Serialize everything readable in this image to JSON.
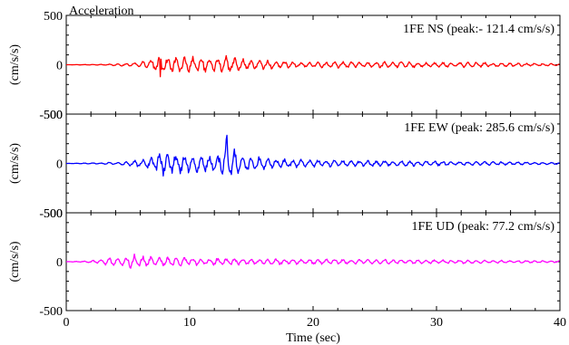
{
  "chart_data": [
    {
      "type": "line",
      "title": "Acceleration",
      "ylabel": "(cm/s/s)",
      "xlabel": "",
      "xlim": [
        0,
        40
      ],
      "ylim": [
        -500,
        500
      ],
      "yticks": [
        -500,
        0,
        500
      ],
      "xticks": [
        0,
        10,
        20,
        30,
        40
      ],
      "grid": false,
      "series": [
        {
          "name": "1FE NS (peak:- 121.4 cm/s/s)",
          "color": "#ff0000",
          "peak": -121.4,
          "peak_time": 7.6,
          "x": [
            0,
            3,
            4,
            5,
            6,
            7,
            7.6,
            8,
            9,
            10,
            11,
            12,
            13,
            14,
            15,
            16,
            17,
            18,
            20,
            22,
            24,
            26,
            28,
            30,
            32,
            34,
            36,
            38,
            40
          ],
          "y": [
            0,
            5,
            12,
            20,
            30,
            60,
            -121.4,
            90,
            -95,
            85,
            -100,
            80,
            -95,
            70,
            -60,
            55,
            -40,
            35,
            -25,
            45,
            -30,
            35,
            -30,
            25,
            30,
            -25,
            20,
            -15,
            10
          ]
        }
      ]
    },
    {
      "type": "line",
      "title": "",
      "ylabel": "(cm/s/s)",
      "xlabel": "",
      "xlim": [
        0,
        40
      ],
      "ylim": [
        -500,
        500
      ],
      "yticks": [
        -500,
        0,
        500
      ],
      "xticks": [
        0,
        10,
        20,
        30,
        40
      ],
      "grid": false,
      "series": [
        {
          "name": "1FE EW (peak: 285.6 cm/s/s)",
          "color": "#0000ff",
          "peak": 285.6,
          "peak_time": 13.0,
          "x": [
            0,
            3,
            4,
            5,
            6,
            7,
            7.8,
            8.5,
            9,
            10,
            11,
            12,
            12.5,
            13,
            13.4,
            14,
            15,
            16,
            17,
            18,
            20,
            22,
            24,
            26,
            28,
            30,
            32,
            34,
            36,
            38,
            40
          ],
          "y": [
            0,
            8,
            15,
            25,
            45,
            70,
            150,
            -110,
            120,
            -100,
            90,
            -85,
            100,
            285.6,
            -200,
            90,
            -80,
            70,
            -55,
            50,
            -40,
            40,
            -35,
            30,
            -30,
            25,
            20,
            -20,
            18,
            -12,
            10
          ]
        }
      ]
    },
    {
      "type": "line",
      "title": "",
      "ylabel": "(cm/s/s)",
      "xlabel": "Time (sec)",
      "xlim": [
        0,
        40
      ],
      "ylim": [
        -500,
        500
      ],
      "yticks": [
        -500,
        0,
        500
      ],
      "xticks": [
        0,
        10,
        20,
        30,
        40
      ],
      "grid": false,
      "series": [
        {
          "name": "1FE UD (peak: 77.2 cm/s/s)",
          "color": "#ff00ff",
          "peak": 77.2,
          "peak_time": 5.5,
          "x": [
            0,
            2,
            3,
            4,
            5,
            5.5,
            6,
            7,
            8,
            10,
            12,
            14,
            16,
            18,
            20,
            22,
            24,
            26,
            28,
            30,
            32,
            34,
            36,
            38,
            40
          ],
          "y": [
            0,
            10,
            30,
            55,
            65,
            77.2,
            60,
            55,
            50,
            45,
            40,
            35,
            35,
            30,
            30,
            28,
            25,
            25,
            22,
            20,
            20,
            18,
            15,
            12,
            10
          ]
        }
      ]
    }
  ]
}
